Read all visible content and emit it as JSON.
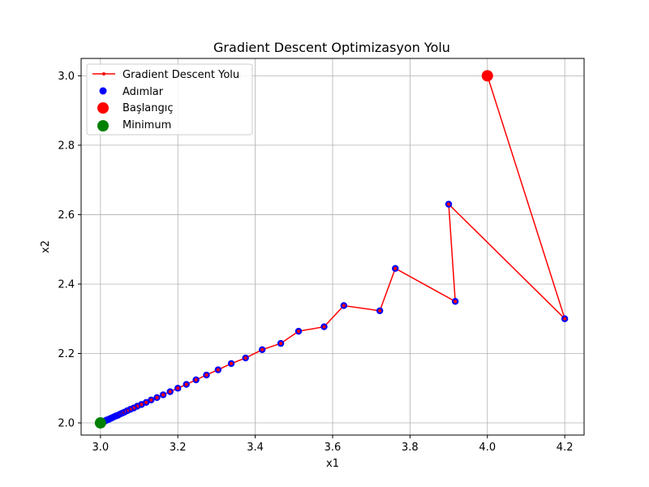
{
  "chart_data": {
    "type": "line",
    "title": "Gradient Descent Optimizasyon Yolu",
    "xlabel": "x1",
    "ylabel": "x2",
    "xlim": [
      2.95,
      4.25
    ],
    "ylim": [
      1.965,
      3.05
    ],
    "xticks": [
      "3.0",
      "3.2",
      "3.4",
      "3.6",
      "3.8",
      "4.0",
      "4.2"
    ],
    "xtick_values": [
      3.0,
      3.2,
      3.4,
      3.6,
      3.8,
      4.0,
      4.2
    ],
    "yticks": [
      "2.0",
      "2.2",
      "2.4",
      "2.6",
      "2.8",
      "3.0"
    ],
    "ytick_values": [
      2.0,
      2.2,
      2.4,
      2.6,
      2.8,
      3.0
    ],
    "grid": true,
    "legend_position": "top-left",
    "series": [
      {
        "name": "Gradient Descent Yolu",
        "color": "#ff0000",
        "x": [
          4.0,
          4.2,
          3.9,
          3.917,
          3.762,
          3.722,
          3.629,
          3.578,
          3.512,
          3.466,
          3.418,
          3.375,
          3.338,
          3.304,
          3.274,
          3.247,
          3.222,
          3.2,
          3.18,
          3.162,
          3.146,
          3.131,
          3.118,
          3.106,
          3.095,
          3.086,
          3.077,
          3.069,
          3.062,
          3.056,
          3.05,
          3.045,
          3.04,
          3.036,
          3.032,
          3.029,
          3.026,
          3.023,
          3.021,
          3.018,
          3.016,
          3.014,
          3.013,
          3.011,
          3.01,
          3.008,
          3.007,
          3.006,
          3.005,
          3.004,
          3.003,
          3.002,
          3.001,
          3.0
        ],
        "y": [
          3.0,
          2.3,
          2.63,
          2.35,
          2.445,
          2.323,
          2.338,
          2.277,
          2.264,
          2.229,
          2.211,
          2.187,
          2.171,
          2.153,
          2.138,
          2.124,
          2.111,
          2.1,
          2.09,
          2.081,
          2.073,
          2.066,
          2.059,
          2.053,
          2.048,
          2.043,
          2.039,
          2.035,
          2.031,
          2.028,
          2.025,
          2.022,
          2.02,
          2.018,
          2.016,
          2.014,
          2.013,
          2.011,
          2.01,
          2.009,
          2.008,
          2.007,
          2.006,
          2.005,
          2.005,
          2.004,
          2.004,
          2.003,
          2.003,
          2.002,
          2.002,
          2.001,
          2.001,
          2.0
        ]
      },
      {
        "name": "Adımlar",
        "color": "#0000ff"
      },
      {
        "name": "Başlangıç",
        "color": "#ff0000",
        "x": [
          4.0
        ],
        "y": [
          3.0
        ]
      },
      {
        "name": "Minimum",
        "color": "#008000",
        "x": [
          3.0
        ],
        "y": [
          2.0
        ]
      }
    ]
  }
}
